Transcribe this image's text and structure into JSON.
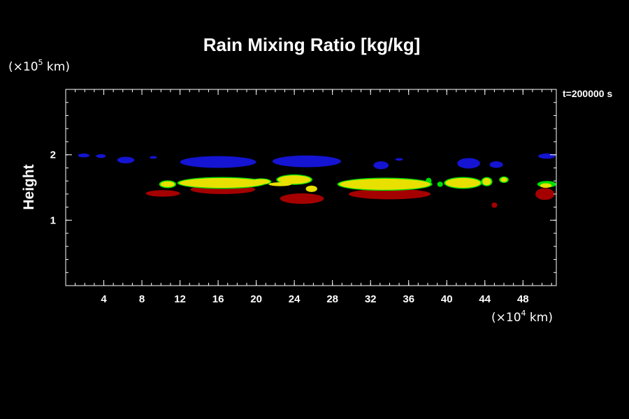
{
  "chart_data": {
    "type": "heatmap",
    "title": "Rain Mixing Ratio [kg/kg]",
    "ylabel": "Height",
    "xlabel": "",
    "x_unit": {
      "prefix": "(×10",
      "exp": "4",
      "suffix": " km)"
    },
    "y_unit": {
      "prefix": "(×10",
      "exp": "5",
      "suffix": " km)"
    },
    "time_label": "t=200000 s",
    "xlim": [
      0,
      51.5
    ],
    "ylim": [
      0,
      3
    ],
    "x_ticks": [
      4,
      8,
      12,
      16,
      20,
      24,
      28,
      32,
      36,
      40,
      44,
      48
    ],
    "y_ticks": [
      1,
      2
    ],
    "x_minor_step": 1,
    "y_minor_step": 0.2,
    "colors": {
      "blue": "#1414d2",
      "yellow": "#e8e000",
      "red": "#a50000",
      "green": "#00e000"
    },
    "regions": [
      {
        "color": "red",
        "cx": 10.2,
        "cy": 1.41,
        "rx": 1.8,
        "ry": 0.05
      },
      {
        "color": "red",
        "cx": 16.5,
        "cy": 1.47,
        "rx": 3.4,
        "ry": 0.07
      },
      {
        "color": "red",
        "cx": 24.8,
        "cy": 1.33,
        "rx": 2.3,
        "ry": 0.08
      },
      {
        "color": "red",
        "cx": 34.0,
        "cy": 1.4,
        "rx": 4.3,
        "ry": 0.08
      },
      {
        "color": "red",
        "cx": 45.0,
        "cy": 1.23,
        "rx": 0.3,
        "ry": 0.04
      },
      {
        "color": "red",
        "cx": 50.3,
        "cy": 1.4,
        "rx": 1.0,
        "ry": 0.09
      },
      {
        "color": "blue",
        "cx": 1.9,
        "cy": 1.99,
        "rx": 0.6,
        "ry": 0.03
      },
      {
        "color": "blue",
        "cx": 3.7,
        "cy": 1.98,
        "rx": 0.5,
        "ry": 0.03
      },
      {
        "color": "blue",
        "cx": 6.3,
        "cy": 1.92,
        "rx": 0.9,
        "ry": 0.05
      },
      {
        "color": "blue",
        "cx": 9.2,
        "cy": 1.96,
        "rx": 0.4,
        "ry": 0.02
      },
      {
        "color": "blue",
        "cx": 16.0,
        "cy": 1.89,
        "rx": 4.0,
        "ry": 0.09
      },
      {
        "color": "blue",
        "cx": 25.3,
        "cy": 1.9,
        "rx": 3.6,
        "ry": 0.09
      },
      {
        "color": "blue",
        "cx": 33.1,
        "cy": 1.84,
        "rx": 0.8,
        "ry": 0.06
      },
      {
        "color": "blue",
        "cx": 35.0,
        "cy": 1.93,
        "rx": 0.4,
        "ry": 0.02
      },
      {
        "color": "blue",
        "cx": 42.3,
        "cy": 1.87,
        "rx": 1.2,
        "ry": 0.08
      },
      {
        "color": "blue",
        "cx": 45.2,
        "cy": 1.85,
        "rx": 0.7,
        "ry": 0.05
      },
      {
        "color": "blue",
        "cx": 50.5,
        "cy": 1.98,
        "rx": 0.9,
        "ry": 0.04
      },
      {
        "color": "green",
        "cx": 10.7,
        "cy": 1.55,
        "rx": 0.9,
        "ry": 0.06
      },
      {
        "color": "green",
        "cx": 16.4,
        "cy": 1.57,
        "rx": 4.7,
        "ry": 0.09
      },
      {
        "color": "green",
        "cx": 20.5,
        "cy": 1.59,
        "rx": 1.1,
        "ry": 0.05
      },
      {
        "color": "green",
        "cx": 24.0,
        "cy": 1.62,
        "rx": 1.9,
        "ry": 0.08
      },
      {
        "color": "green",
        "cx": 33.5,
        "cy": 1.55,
        "rx": 5.0,
        "ry": 0.1
      },
      {
        "color": "green",
        "cx": 38.1,
        "cy": 1.6,
        "rx": 0.3,
        "ry": 0.05
      },
      {
        "color": "green",
        "cx": 39.3,
        "cy": 1.55,
        "rx": 0.3,
        "ry": 0.04
      },
      {
        "color": "green",
        "cx": 41.7,
        "cy": 1.57,
        "rx": 2.0,
        "ry": 0.09
      },
      {
        "color": "green",
        "cx": 44.2,
        "cy": 1.59,
        "rx": 0.6,
        "ry": 0.07
      },
      {
        "color": "green",
        "cx": 46.0,
        "cy": 1.62,
        "rx": 0.5,
        "ry": 0.05
      },
      {
        "color": "green",
        "cx": 50.5,
        "cy": 1.55,
        "rx": 1.0,
        "ry": 0.05
      },
      {
        "color": "yellow",
        "cx": 10.7,
        "cy": 1.55,
        "rx": 0.75,
        "ry": 0.045
      },
      {
        "color": "yellow",
        "cx": 16.4,
        "cy": 1.57,
        "rx": 4.5,
        "ry": 0.075
      },
      {
        "color": "yellow",
        "cx": 20.5,
        "cy": 1.59,
        "rx": 0.95,
        "ry": 0.04
      },
      {
        "color": "yellow",
        "cx": 22.5,
        "cy": 1.55,
        "rx": 1.2,
        "ry": 0.03
      },
      {
        "color": "yellow",
        "cx": 24.0,
        "cy": 1.62,
        "rx": 1.75,
        "ry": 0.065
      },
      {
        "color": "yellow",
        "cx": 25.8,
        "cy": 1.48,
        "rx": 0.6,
        "ry": 0.05
      },
      {
        "color": "yellow",
        "cx": 33.5,
        "cy": 1.55,
        "rx": 4.8,
        "ry": 0.085
      },
      {
        "color": "yellow",
        "cx": 41.7,
        "cy": 1.57,
        "rx": 1.85,
        "ry": 0.075
      },
      {
        "color": "yellow",
        "cx": 44.2,
        "cy": 1.59,
        "rx": 0.45,
        "ry": 0.055
      },
      {
        "color": "yellow",
        "cx": 46.0,
        "cy": 1.62,
        "rx": 0.35,
        "ry": 0.035
      },
      {
        "color": "yellow",
        "cx": 50.4,
        "cy": 1.53,
        "rx": 0.6,
        "ry": 0.035
      }
    ]
  }
}
